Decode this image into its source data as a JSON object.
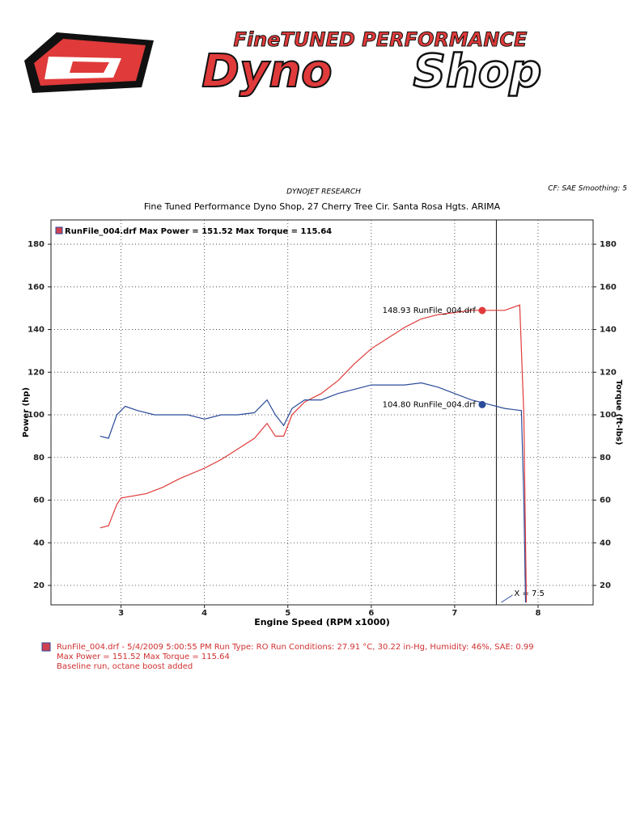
{
  "logo": {
    "line1": "FineTUNED PERFORMANCE",
    "word1": "Dyno",
    "word2": "Shop"
  },
  "chart_data": {
    "type": "line",
    "supertitle": "DYNOJET RESEARCH",
    "settings_text": "CF: SAE  Smoothing: 5",
    "title": "Fine Tuned Performance Dyno Shop, 27 Cherry Tree Cir. Santa Rosa Hgts. ARIMA",
    "legend_text": "RunFile_004.drf Max Power = 151.52    Max Torque = 115.64",
    "xlabel": "Engine Speed (RPM x1000)",
    "ylabel": "Power (hp)",
    "y2label": "Torque (ft-lbs)",
    "xlim": [
      2.16,
      8.66
    ],
    "xticks": [
      3,
      4,
      5,
      6,
      7,
      8
    ],
    "ylim": [
      10.9,
      191.4
    ],
    "yticks": [
      20,
      40,
      60,
      80,
      100,
      120,
      140,
      160,
      180
    ],
    "y2lim": [
      10.9,
      191.4
    ],
    "y2ticks": [
      20,
      40,
      60,
      80,
      100,
      120,
      140,
      160,
      180
    ],
    "grid": true,
    "series": [
      {
        "color": "#e03a3a",
        "axis": "y",
        "x": [
          2.75,
          2.85,
          2.95,
          3.0,
          3.3,
          3.5,
          3.7,
          4.0,
          4.2,
          4.4,
          4.6,
          4.75,
          4.85,
          4.95,
          5.05,
          5.2,
          5.4,
          5.6,
          5.8,
          6.0,
          6.2,
          6.4,
          6.6,
          6.8,
          7.0,
          7.2,
          7.4,
          7.6,
          7.78,
          7.83,
          7.86
        ],
        "values": [
          47,
          48,
          58,
          61,
          63,
          66,
          70,
          75,
          79,
          84,
          89,
          96,
          90,
          90,
          100,
          106,
          110,
          116,
          124,
          131,
          136,
          141,
          145,
          147,
          148,
          149,
          149,
          149,
          151.5,
          100,
          12
        ]
      },
      {
        "color": "#2a4a9a",
        "axis": "y2",
        "x": [
          2.75,
          2.85,
          2.95,
          3.05,
          3.2,
          3.4,
          3.6,
          3.8,
          4.0,
          4.2,
          4.4,
          4.6,
          4.75,
          4.85,
          4.95,
          5.05,
          5.2,
          5.4,
          5.6,
          5.8,
          6.0,
          6.2,
          6.4,
          6.6,
          6.8,
          7.0,
          7.2,
          7.4,
          7.6,
          7.8,
          7.83,
          7.85
        ],
        "values": [
          90,
          89,
          100,
          104,
          102,
          100,
          100,
          100,
          98,
          100,
          100,
          101,
          107,
          100,
          95,
          103,
          107,
          107,
          110,
          112,
          114,
          114,
          114,
          115,
          113,
          110,
          107,
          105,
          103,
          102,
          60,
          12
        ]
      }
    ],
    "annotations": [
      {
        "x": 7.33,
        "value": 148.93,
        "label": "148.93 RunFile_004.drf",
        "series": 0
      },
      {
        "x": 7.33,
        "value": 104.8,
        "label": "104.80 RunFile_004.drf",
        "series": 1
      }
    ],
    "cursor": {
      "value": 7.5,
      "label": "X = 7.5"
    },
    "footer": [
      "RunFile_004.drf - 5/4/2009 5:00:55 PM  Run Type: RO  Run Conditions: 27.91 °C, 30.22 in-Hg,  Humidity:  46%, SAE: 0.99",
      "Max Power = 151.52  Max Torque = 115.64",
      "Baseline run, octane boost added"
    ]
  }
}
